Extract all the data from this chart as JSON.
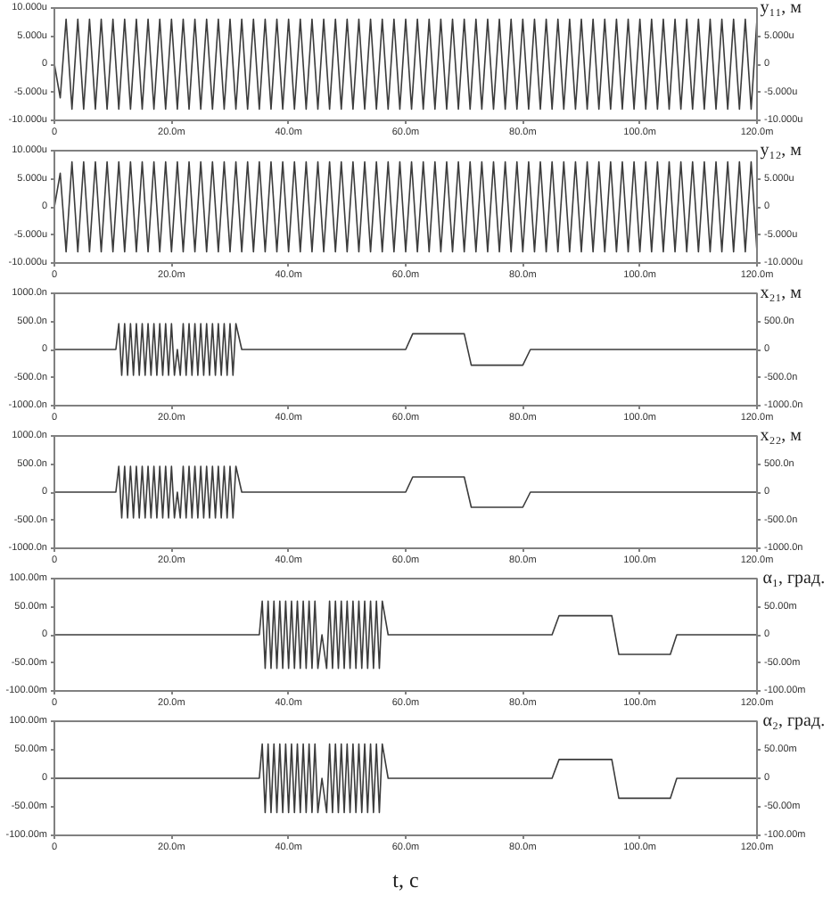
{
  "chart_data": [
    {
      "type": "line",
      "y2label": "y₁₁, м",
      "color": "#3c3c3c",
      "x": [
        0,
        1,
        2,
        3,
        4,
        5,
        6,
        7,
        8,
        9,
        10,
        11,
        12,
        13,
        14,
        15,
        16,
        17,
        18,
        19,
        20,
        21,
        22,
        23,
        24,
        25,
        26,
        27,
        28,
        29,
        30,
        31,
        32,
        33,
        34,
        35,
        36,
        37,
        38,
        39,
        40,
        41,
        42,
        43,
        44,
        45,
        46,
        47,
        48,
        49,
        50,
        51,
        52,
        53,
        54,
        55,
        56,
        57,
        58,
        59,
        60,
        61,
        62,
        63,
        64,
        65,
        66,
        67,
        68,
        69,
        70,
        71,
        72,
        73,
        74,
        75,
        76,
        77,
        78,
        79,
        80,
        81,
        82,
        83,
        84,
        85,
        86,
        87,
        88,
        89,
        90,
        91,
        92,
        93,
        94,
        95,
        96,
        97,
        98,
        99,
        100,
        101,
        102,
        103,
        104,
        105,
        106,
        107,
        108,
        109,
        110,
        111,
        112,
        113,
        114,
        115,
        116,
        117,
        118,
        119,
        120
      ],
      "values": [
        0,
        -6,
        8,
        -8,
        8,
        -8,
        8,
        -8,
        8,
        -8,
        8,
        -8,
        8,
        -8,
        8,
        -8,
        8,
        -8,
        8,
        -8,
        8,
        -8,
        8,
        -8,
        8,
        -8,
        8,
        -8,
        8,
        -8,
        8,
        -8,
        8,
        -8,
        8,
        -8,
        8,
        -8,
        8,
        -8,
        8,
        -8,
        8,
        -8,
        8,
        -8,
        8,
        -8,
        8,
        -8,
        8,
        -8,
        8,
        -8,
        8,
        -8,
        8,
        -8,
        8,
        -8,
        8,
        -8,
        8,
        -8,
        8,
        -8,
        8,
        -8,
        8,
        -8,
        8,
        -8,
        8,
        -8,
        8,
        -8,
        8,
        -8,
        8,
        -8,
        8,
        -8,
        8,
        -8,
        8,
        -8,
        8,
        -8,
        8,
        -8,
        8,
        -8,
        8,
        -8,
        8,
        -8,
        8,
        -8,
        8,
        -8,
        8,
        -8,
        8,
        -8,
        8,
        -8,
        8,
        -8,
        8,
        -8,
        8,
        -8,
        8,
        -8,
        8,
        -8,
        8,
        -8,
        8,
        -8,
        8
      ],
      "xlim": [
        0,
        120
      ],
      "xticks": [
        0,
        {
          "value": 20,
          "label": "20.0m"
        },
        {
          "value": 40,
          "label": "40.0m"
        },
        {
          "value": 60,
          "label": "60.0m"
        },
        {
          "value": 80,
          "label": "80.0m"
        },
        {
          "value": 100,
          "label": "100.0m"
        },
        {
          "value": 120,
          "label": "120.0m"
        }
      ],
      "ylim": [
        -10,
        10
      ],
      "yticks": [
        {
          "value": 10,
          "label": "10.000u"
        },
        {
          "value": 5,
          "label": "5.000u"
        },
        0,
        {
          "value": -5,
          "label": "-5.000u"
        },
        {
          "value": -10,
          "label": "-10.000u"
        }
      ],
      "y2lim": [
        -10,
        10
      ],
      "y2ticks": [
        {
          "value": 5,
          "label": "5.000u"
        },
        0,
        {
          "value": -5,
          "label": "-5.000u"
        },
        {
          "value": -10,
          "label": "-10.000u"
        }
      ]
    },
    {
      "type": "line",
      "y2label": "y₁₂, м",
      "color": "#3c3c3c",
      "x": [
        0,
        1,
        2,
        3,
        4,
        5,
        6,
        7,
        8,
        9,
        10,
        11,
        12,
        13,
        14,
        15,
        16,
        17,
        18,
        19,
        20,
        21,
        22,
        23,
        24,
        25,
        26,
        27,
        28,
        29,
        30,
        31,
        32,
        33,
        34,
        35,
        36,
        37,
        38,
        39,
        40,
        41,
        42,
        43,
        44,
        45,
        46,
        47,
        48,
        49,
        50,
        51,
        52,
        53,
        54,
        55,
        56,
        57,
        58,
        59,
        60,
        61,
        62,
        63,
        64,
        65,
        66,
        67,
        68,
        69,
        70,
        71,
        72,
        73,
        74,
        75,
        76,
        77,
        78,
        79,
        80,
        81,
        82,
        83,
        84,
        85,
        86,
        87,
        88,
        89,
        90,
        91,
        92,
        93,
        94,
        95,
        96,
        97,
        98,
        99,
        100,
        101,
        102,
        103,
        104,
        105,
        106,
        107,
        108,
        109,
        110,
        111,
        112,
        113,
        114,
        115,
        116,
        117,
        118,
        119,
        120
      ],
      "values": [
        0,
        6,
        -8,
        8,
        -8,
        8,
        -8,
        8,
        -8,
        8,
        -8,
        8,
        -8,
        8,
        -8,
        8,
        -8,
        8,
        -8,
        8,
        -8,
        8,
        -8,
        8,
        -8,
        8,
        -8,
        8,
        -8,
        8,
        -8,
        8,
        -8,
        8,
        -8,
        8,
        -8,
        8,
        -8,
        8,
        -8,
        8,
        -8,
        8,
        -8,
        8,
        -8,
        8,
        -8,
        8,
        -8,
        8,
        -8,
        8,
        -8,
        8,
        -8,
        8,
        -8,
        8,
        -8,
        8,
        -8,
        8,
        -8,
        8,
        -8,
        8,
        -8,
        8,
        -8,
        8,
        -8,
        8,
        -8,
        8,
        -8,
        8,
        -8,
        8,
        -8,
        8,
        -8,
        8,
        -8,
        8,
        -8,
        8,
        -8,
        8,
        -8,
        8,
        -8,
        8,
        -8,
        8,
        -8,
        8,
        -8,
        8,
        -8,
        8,
        -8,
        8,
        -8,
        8,
        -8,
        8,
        -8,
        8,
        -8,
        8,
        -8,
        8,
        -8,
        8,
        -8,
        8,
        -8,
        8,
        -8
      ],
      "xlim": [
        0,
        120
      ],
      "xticks": [
        0,
        {
          "value": 20,
          "label": "20.0m"
        },
        {
          "value": 40,
          "label": "40.0m"
        },
        {
          "value": 60,
          "label": "60.0m"
        },
        {
          "value": 80,
          "label": "80.0m"
        },
        {
          "value": 100,
          "label": "100.0m"
        },
        {
          "value": 120,
          "label": "120.0m"
        }
      ],
      "ylim": [
        -10,
        10
      ],
      "yticks": [
        {
          "value": 10,
          "label": "10.000u"
        },
        {
          "value": 5,
          "label": "5.000u"
        },
        0,
        {
          "value": -5,
          "label": "-5.000u"
        },
        {
          "value": -10,
          "label": "-10.000u"
        }
      ],
      "y2lim": [
        -10,
        10
      ],
      "y2ticks": [
        {
          "value": 5,
          "label": "5.000u"
        },
        0,
        {
          "value": -5,
          "label": "-5.000u"
        },
        {
          "value": -10,
          "label": "-10.000u"
        }
      ]
    },
    {
      "type": "line",
      "y2label": "x₂₁, м",
      "color": "#3c3c3c",
      "x": [
        0,
        10.5,
        11,
        11.5,
        12,
        12.5,
        13,
        13.5,
        14,
        14.5,
        15,
        15.5,
        16,
        16.5,
        17,
        17.5,
        18,
        18.5,
        19,
        19.5,
        20,
        20.5,
        21,
        21.5,
        22,
        22.5,
        23,
        23.5,
        24,
        24.5,
        25,
        25.5,
        26,
        26.5,
        27,
        27.5,
        28,
        28.5,
        29,
        29.5,
        30,
        30.5,
        31,
        32,
        60,
        61.2,
        70,
        71.2,
        80,
        81.3,
        120
      ],
      "values": [
        0,
        0,
        460,
        -460,
        460,
        -460,
        460,
        -460,
        460,
        -460,
        460,
        -460,
        460,
        -460,
        460,
        -460,
        460,
        -460,
        460,
        -460,
        460,
        -460,
        0,
        -460,
        460,
        -460,
        460,
        -460,
        460,
        -460,
        460,
        -460,
        460,
        -460,
        460,
        -460,
        460,
        -460,
        460,
        -460,
        460,
        -460,
        460,
        0,
        0,
        280,
        280,
        -280,
        -280,
        0,
        0
      ],
      "xlim": [
        0,
        120
      ],
      "xticks": [
        0,
        {
          "value": 20,
          "label": "20.0m"
        },
        {
          "value": 40,
          "label": "40.0m"
        },
        {
          "value": 60,
          "label": "60.0m"
        },
        {
          "value": 80,
          "label": "80.0m"
        },
        {
          "value": 100,
          "label": "100.0m"
        },
        {
          "value": 120,
          "label": "120.0m"
        }
      ],
      "ylim": [
        -1000,
        1000
      ],
      "yticks": [
        {
          "value": 1000,
          "label": "1000.0n"
        },
        {
          "value": 500,
          "label": "500.0n"
        },
        0,
        {
          "value": -500,
          "label": "-500.0n"
        },
        {
          "value": -1000,
          "label": "-1000.0n"
        }
      ],
      "y2lim": [
        -1000,
        1000
      ],
      "y2ticks": [
        {
          "value": 500,
          "label": "500.0n"
        },
        0,
        {
          "value": -500,
          "label": "-500.0n"
        },
        {
          "value": -1000,
          "label": "-1000.0n"
        }
      ]
    },
    {
      "type": "line",
      "y2label": "x₂₂, м",
      "color": "#3c3c3c",
      "x": [
        0,
        10.5,
        11,
        11.5,
        12,
        12.5,
        13,
        13.5,
        14,
        14.5,
        15,
        15.5,
        16,
        16.5,
        17,
        17.5,
        18,
        18.5,
        19,
        19.5,
        20,
        20.5,
        21,
        21.5,
        22,
        22.5,
        23,
        23.5,
        24,
        24.5,
        25,
        25.5,
        26,
        26.5,
        27,
        27.5,
        28,
        28.5,
        29,
        29.5,
        30,
        30.5,
        31,
        32,
        60,
        61.2,
        70,
        71.2,
        80,
        81.3,
        120
      ],
      "values": [
        0,
        0,
        460,
        -460,
        460,
        -460,
        460,
        -460,
        460,
        -460,
        460,
        -460,
        460,
        -460,
        460,
        -460,
        460,
        -460,
        460,
        -460,
        460,
        -460,
        0,
        -460,
        460,
        -460,
        460,
        -460,
        460,
        -460,
        460,
        -460,
        460,
        -460,
        460,
        -460,
        460,
        -460,
        460,
        -460,
        460,
        -460,
        460,
        0,
        0,
        270,
        270,
        -270,
        -270,
        0,
        0
      ],
      "xlim": [
        0,
        120
      ],
      "xticks": [
        0,
        {
          "value": 20,
          "label": "20.0m"
        },
        {
          "value": 40,
          "label": "40.0m"
        },
        {
          "value": 60,
          "label": "60.0m"
        },
        {
          "value": 80,
          "label": "80.0m"
        },
        {
          "value": 100,
          "label": "100.0m"
        },
        {
          "value": 120,
          "label": "120.0m"
        }
      ],
      "ylim": [
        -1000,
        1000
      ],
      "yticks": [
        {
          "value": 1000,
          "label": "1000.0n"
        },
        {
          "value": 500,
          "label": "500.0n"
        },
        0,
        {
          "value": -500,
          "label": "-500.0n"
        },
        {
          "value": -1000,
          "label": "-1000.0n"
        }
      ],
      "y2lim": [
        -1000,
        1000
      ],
      "y2ticks": [
        {
          "value": 500,
          "label": "500.0n"
        },
        0,
        {
          "value": -500,
          "label": "-500.0n"
        },
        {
          "value": -1000,
          "label": "-1000.0n"
        }
      ]
    },
    {
      "type": "line",
      "y2label": "α₁, град.",
      "color": "#3c3c3c",
      "x": [
        0,
        35,
        35.5,
        36,
        36.5,
        37,
        37.5,
        38,
        38.5,
        39,
        39.5,
        40,
        40.5,
        41,
        41.5,
        42,
        42.5,
        43,
        43.5,
        44,
        44.5,
        45,
        45.7,
        46.5,
        47,
        47.5,
        48,
        48.5,
        49,
        49.5,
        50,
        50.5,
        51,
        51.5,
        52,
        52.5,
        53,
        53.5,
        54,
        54.5,
        55,
        55.5,
        56,
        57,
        85,
        86.2,
        95.2,
        96.4,
        105.2,
        106.3,
        120
      ],
      "values": [
        0,
        0,
        60,
        -60,
        60,
        -60,
        60,
        -60,
        60,
        -60,
        60,
        -60,
        60,
        -60,
        60,
        -60,
        60,
        -60,
        60,
        -60,
        60,
        -60,
        0,
        -60,
        60,
        -60,
        60,
        -60,
        60,
        -60,
        60,
        -60,
        60,
        -60,
        60,
        -60,
        60,
        -60,
        60,
        -60,
        60,
        -60,
        60,
        0,
        0,
        34,
        34,
        -35,
        -35,
        0,
        0
      ],
      "xlim": [
        0,
        120
      ],
      "xticks": [
        0,
        {
          "value": 20,
          "label": "20.0m"
        },
        {
          "value": 40,
          "label": "40.0m"
        },
        {
          "value": 60,
          "label": "60.0m"
        },
        {
          "value": 80,
          "label": "80.0m"
        },
        {
          "value": 100,
          "label": "100.0m"
        },
        {
          "value": 120,
          "label": "120.0m"
        }
      ],
      "ylim": [
        -100,
        100
      ],
      "yticks": [
        {
          "value": 100,
          "label": "100.00m"
        },
        {
          "value": 50,
          "label": "50.00m"
        },
        0,
        {
          "value": -50,
          "label": "-50.00m"
        },
        {
          "value": -100,
          "label": "-100.00m"
        }
      ],
      "y2lim": [
        -100,
        100
      ],
      "y2ticks": [
        {
          "value": 50,
          "label": "50.00m"
        },
        0,
        {
          "value": -50,
          "label": "-50.00m"
        },
        {
          "value": -100,
          "label": "-100.00m"
        }
      ]
    },
    {
      "type": "line",
      "y2label": "α₂, град.",
      "xlabel": "t, с",
      "color": "#3c3c3c",
      "x": [
        0,
        35,
        35.5,
        36,
        36.5,
        37,
        37.5,
        38,
        38.5,
        39,
        39.5,
        40,
        40.5,
        41,
        41.5,
        42,
        42.5,
        43,
        43.5,
        44,
        44.5,
        45,
        45.7,
        46.5,
        47,
        47.5,
        48,
        48.5,
        49,
        49.5,
        50,
        50.5,
        51,
        51.5,
        52,
        52.5,
        53,
        53.5,
        54,
        54.5,
        55,
        55.5,
        56,
        57,
        85,
        86.2,
        95.2,
        96.4,
        105.2,
        106.3,
        120
      ],
      "values": [
        0,
        0,
        60,
        -60,
        60,
        -60,
        60,
        -60,
        60,
        -60,
        60,
        -60,
        60,
        -60,
        60,
        -60,
        60,
        -60,
        60,
        -60,
        60,
        -60,
        0,
        -60,
        60,
        -60,
        60,
        -60,
        60,
        -60,
        60,
        -60,
        60,
        -60,
        60,
        -60,
        60,
        -60,
        60,
        -60,
        60,
        -60,
        60,
        0,
        0,
        33,
        33,
        -35,
        -35,
        0,
        0
      ],
      "xlim": [
        0,
        120
      ],
      "xticks": [
        0,
        {
          "value": 20,
          "label": "20.0m"
        },
        {
          "value": 40,
          "label": "40.0m"
        },
        {
          "value": 60,
          "label": "60.0m"
        },
        {
          "value": 80,
          "label": "80.0m"
        },
        {
          "value": 100,
          "label": "100.0m"
        },
        {
          "value": 120,
          "label": "120.0m"
        }
      ],
      "ylim": [
        -100,
        100
      ],
      "yticks": [
        {
          "value": 100,
          "label": "100.00m"
        },
        {
          "value": 50,
          "label": "50.00m"
        },
        0,
        {
          "value": -50,
          "label": "-50.00m"
        },
        {
          "value": -100,
          "label": "-100.00m"
        }
      ],
      "y2lim": [
        -100,
        100
      ],
      "y2ticks": [
        {
          "value": 50,
          "label": "50.00m"
        },
        0,
        {
          "value": -50,
          "label": "-50.00m"
        },
        {
          "value": -100,
          "label": "-100.00m"
        }
      ]
    }
  ]
}
